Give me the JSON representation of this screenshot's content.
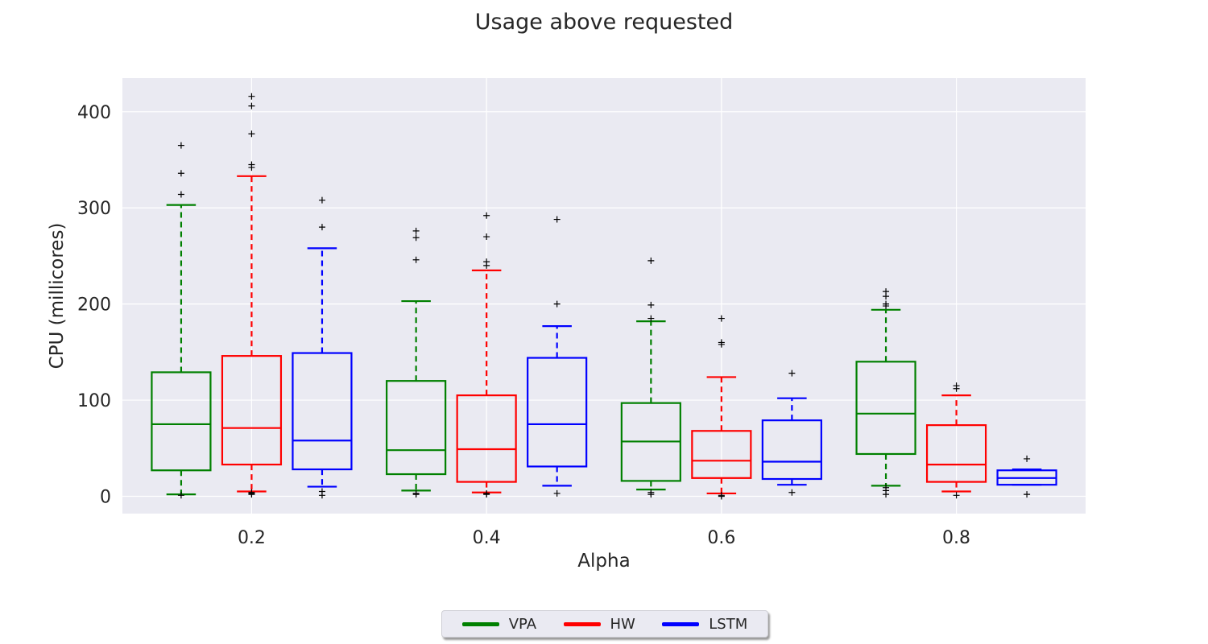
{
  "chart_data": {
    "type": "box",
    "title": "Usage above requested",
    "xlabel": "Alpha",
    "ylabel": "CPU (millicores)",
    "xlim": [
      0.09,
      0.91
    ],
    "ylim": [
      -18,
      435
    ],
    "xticks": [
      0.2,
      0.4,
      0.6,
      0.8
    ],
    "xtick_labels": [
      "0.2",
      "0.4",
      "0.6",
      "0.8"
    ],
    "yticks": [
      0,
      100,
      200,
      300,
      400
    ],
    "ytick_labels": [
      "0",
      "100",
      "200",
      "300",
      "400"
    ],
    "grid": true,
    "legend_position": "bottom-center",
    "categories": [
      "0.2",
      "0.4",
      "0.6",
      "0.8"
    ],
    "series": [
      {
        "name": "VPA",
        "color": "#008000",
        "boxes": [
          {
            "x": 0.14,
            "whislo": 2,
            "q1": 27,
            "med": 75,
            "q3": 129,
            "whishi": 303,
            "fliers": [
              1,
              314,
              336,
              365
            ]
          },
          {
            "x": 0.34,
            "whislo": 6,
            "q1": 23,
            "med": 48,
            "q3": 120,
            "whishi": 203,
            "fliers": [
              2,
              3,
              246,
              269,
              276
            ]
          },
          {
            "x": 0.54,
            "whislo": 7,
            "q1": 16,
            "med": 57,
            "q3": 97,
            "whishi": 182,
            "fliers": [
              2,
              4,
              185,
              199,
              245
            ]
          },
          {
            "x": 0.74,
            "whislo": 11,
            "q1": 44,
            "med": 86,
            "q3": 140,
            "whishi": 194,
            "fliers": [
              2,
              6,
              9,
              198,
              200,
              208,
              213
            ]
          }
        ]
      },
      {
        "name": "HW",
        "color": "#ff0000",
        "boxes": [
          {
            "x": 0.2,
            "whislo": 5,
            "q1": 33,
            "med": 71,
            "q3": 146,
            "whishi": 333,
            "fliers": [
              2,
              3,
              4,
              342,
              345,
              377,
              406,
              416
            ]
          },
          {
            "x": 0.4,
            "whislo": 4,
            "q1": 15,
            "med": 49,
            "q3": 105,
            "whishi": 235,
            "fliers": [
              2,
              3,
              240,
              244,
              270,
              292
            ]
          },
          {
            "x": 0.6,
            "whislo": 3,
            "q1": 19,
            "med": 37,
            "q3": 68,
            "whishi": 124,
            "fliers": [
              0,
              1,
              158,
              160,
              185
            ]
          },
          {
            "x": 0.8,
            "whislo": 5,
            "q1": 15,
            "med": 33,
            "q3": 74,
            "whishi": 105,
            "fliers": [
              1,
              112,
              115
            ]
          }
        ]
      },
      {
        "name": "LSTM",
        "color": "#0000ff",
        "boxes": [
          {
            "x": 0.26,
            "whislo": 10,
            "q1": 28,
            "med": 58,
            "q3": 149,
            "whishi": 258,
            "fliers": [
              1,
              5,
              280,
              308
            ]
          },
          {
            "x": 0.46,
            "whislo": 11,
            "q1": 31,
            "med": 75,
            "q3": 144,
            "whishi": 177,
            "fliers": [
              3,
              200,
              288
            ]
          },
          {
            "x": 0.66,
            "whislo": 12,
            "q1": 18,
            "med": 36,
            "q3": 79,
            "whishi": 102,
            "fliers": [
              4,
              128
            ]
          },
          {
            "x": 0.86,
            "whislo": 12,
            "q1": 12,
            "med": 19,
            "q3": 27,
            "whishi": 28,
            "fliers": [
              2,
              39
            ]
          }
        ]
      }
    ]
  }
}
